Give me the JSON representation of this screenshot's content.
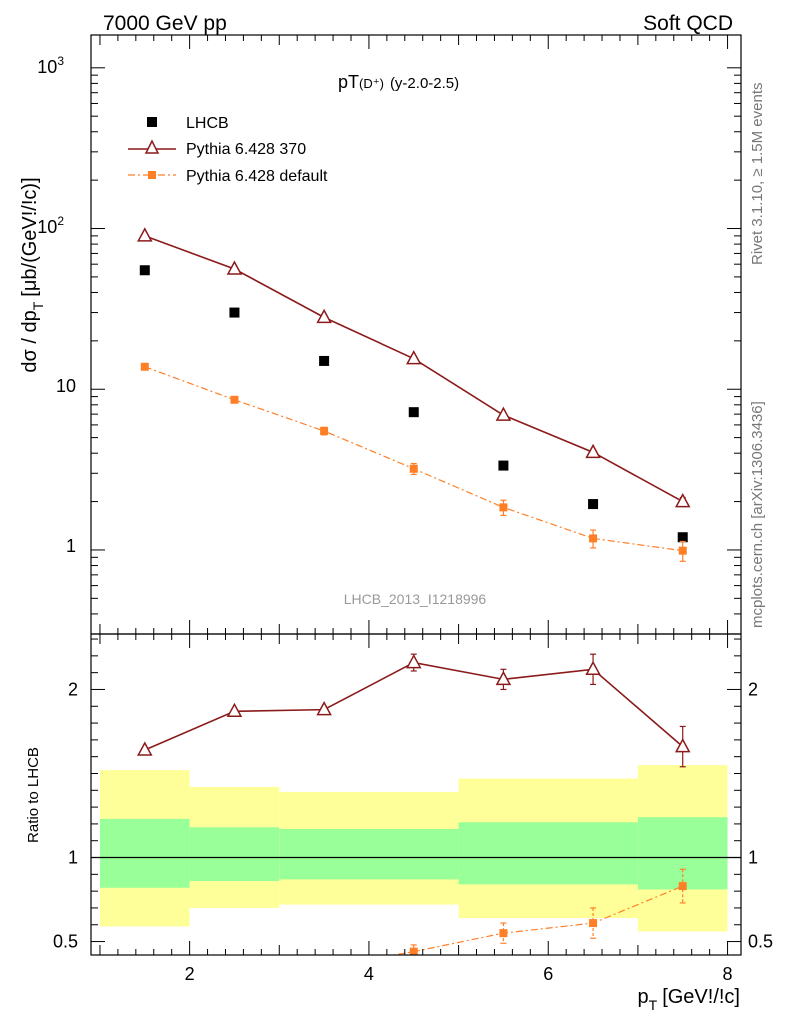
{
  "header": {
    "left": "7000 GeV pp",
    "right": "Soft QCD"
  },
  "side_labels": {
    "rivet": "Rivet 3.1.10, ≥ 1.5M events",
    "mcplots": "mcplots.cern.ch [arXiv:1306.3436]"
  },
  "chart_data": [
    {
      "type": "scatter",
      "panel": "main",
      "title_main": "pT",
      "title_sub": "(D⁺)",
      "title_tail": "(y-2.0-2.5)",
      "ylabel": "dσ / dp",
      "ylabel_sub": "T",
      "ylabel_tail": "[μb/(GeV!/!c)]",
      "yscale": "log",
      "ylim": [
        0.3,
        1600
      ],
      "xlim": [
        0.9,
        8.15
      ],
      "ytick_labels": {
        "t1": "1",
        "t10": "10",
        "t100_base": "10",
        "t100_exp": "2",
        "t1000_base": "10",
        "t1000_exp": "3"
      },
      "watermark": "LHCB_2013_I1218996",
      "legend_position": "top-left",
      "series": [
        {
          "name": "LHCB",
          "color": "#000000",
          "marker": "square",
          "x": [
            1.5,
            2.5,
            3.5,
            4.5,
            5.5,
            6.5,
            7.5
          ],
          "y": [
            55,
            30,
            15,
            7.2,
            3.35,
            1.93,
            1.2
          ]
        },
        {
          "name": "Pythia 6.428 370",
          "color": "#8b1a1a",
          "marker": "open-triangle",
          "line": "solid",
          "x": [
            1.5,
            2.5,
            3.5,
            4.5,
            5.5,
            6.5,
            7.5
          ],
          "y": [
            90,
            56,
            28,
            15.5,
            6.9,
            4.05,
            2.0
          ],
          "yerr": [
            0,
            0,
            0,
            0,
            0,
            0,
            0.12
          ]
        },
        {
          "name": "Pythia 6.428 default",
          "color": "#ff7f27",
          "marker": "square",
          "line": "dash-dot",
          "x": [
            1.5,
            2.5,
            3.5,
            4.5,
            5.5,
            6.5,
            7.5
          ],
          "y": [
            13.8,
            8.6,
            5.5,
            3.2,
            1.84,
            1.18,
            0.99
          ],
          "yerr": [
            0.3,
            0.25,
            0.3,
            0.25,
            0.2,
            0.15,
            0.14
          ]
        }
      ]
    },
    {
      "type": "scatter",
      "panel": "ratio",
      "ylabel": "Ratio to LHCB",
      "xlabel": "p",
      "xlabel_sub": "T",
      "xlabel_tail": "[GeV!/!c]",
      "xlim": [
        0.9,
        8.15
      ],
      "ylim": [
        0.42,
        2.33
      ],
      "x_ticks": [
        2,
        4,
        6,
        8
      ],
      "y_ticks": [
        0.5,
        1,
        2
      ],
      "bands": [
        {
          "x0": 1.0,
          "x1": 2.0,
          "yellow": [
            0.59,
            1.52
          ],
          "green": [
            0.82,
            1.23
          ]
        },
        {
          "x0": 2.0,
          "x1": 3.0,
          "yellow": [
            0.7,
            1.42
          ],
          "green": [
            0.86,
            1.18
          ]
        },
        {
          "x0": 3.0,
          "x1": 5.0,
          "yellow": [
            0.72,
            1.39
          ],
          "green": [
            0.87,
            1.17
          ]
        },
        {
          "x0": 5.0,
          "x1": 7.0,
          "yellow": [
            0.64,
            1.47
          ],
          "green": [
            0.84,
            1.21
          ]
        },
        {
          "x0": 7.0,
          "x1": 8.0,
          "yellow": [
            0.56,
            1.55
          ],
          "green": [
            0.81,
            1.24
          ]
        }
      ],
      "series": [
        {
          "name": "Pythia 6.428 370",
          "color": "#8b1a1a",
          "x": [
            1.5,
            2.5,
            3.5,
            4.5,
            5.5,
            6.5,
            7.5
          ],
          "y": [
            1.64,
            1.87,
            1.88,
            2.16,
            2.06,
            2.12,
            1.66
          ],
          "yerr": [
            0,
            0,
            0,
            0.05,
            0.06,
            0.09,
            0.12
          ]
        },
        {
          "name": "Pythia 6.428 default",
          "color": "#ff7f27",
          "x": [
            3.5,
            4.5,
            5.5,
            6.5,
            7.5
          ],
          "y": [
            0.35,
            0.44,
            0.55,
            0.61,
            0.83
          ],
          "yerr": [
            0,
            0.04,
            0.06,
            0.09,
            0.1
          ]
        }
      ]
    }
  ]
}
